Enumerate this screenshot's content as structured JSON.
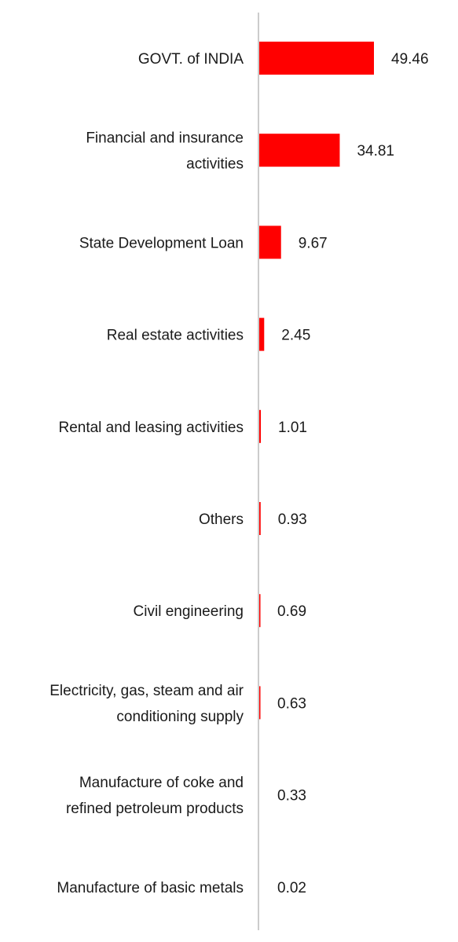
{
  "chart_data": {
    "type": "bar",
    "orientation": "horizontal",
    "title": "",
    "xlabel": "",
    "ylabel": "",
    "bar_color": "#ff0000",
    "axis_color": "#cccccc",
    "grid": false,
    "legend": "none",
    "xlim": [
      0,
      50
    ],
    "categories": [
      [
        "GOVT. of INDIA"
      ],
      [
        "Financial and insurance",
        "activities"
      ],
      [
        "State Development Loan"
      ],
      [
        "Real estate activities"
      ],
      [
        "Rental and leasing activities"
      ],
      [
        "Others"
      ],
      [
        "Civil engineering"
      ],
      [
        "Electricity, gas, steam and air",
        "conditioning supply"
      ],
      [
        "Manufacture of coke and",
        "refined petroleum products"
      ],
      [
        "Manufacture of basic metals"
      ]
    ],
    "values": [
      49.46,
      34.81,
      9.67,
      2.45,
      1.01,
      0.93,
      0.69,
      0.63,
      0.33,
      0.02
    ],
    "value_labels": [
      "49.46",
      "34.81",
      "9.67",
      "2.45",
      "1.01",
      "0.93",
      "0.69",
      "0.63",
      "0.33",
      "0.02"
    ]
  }
}
